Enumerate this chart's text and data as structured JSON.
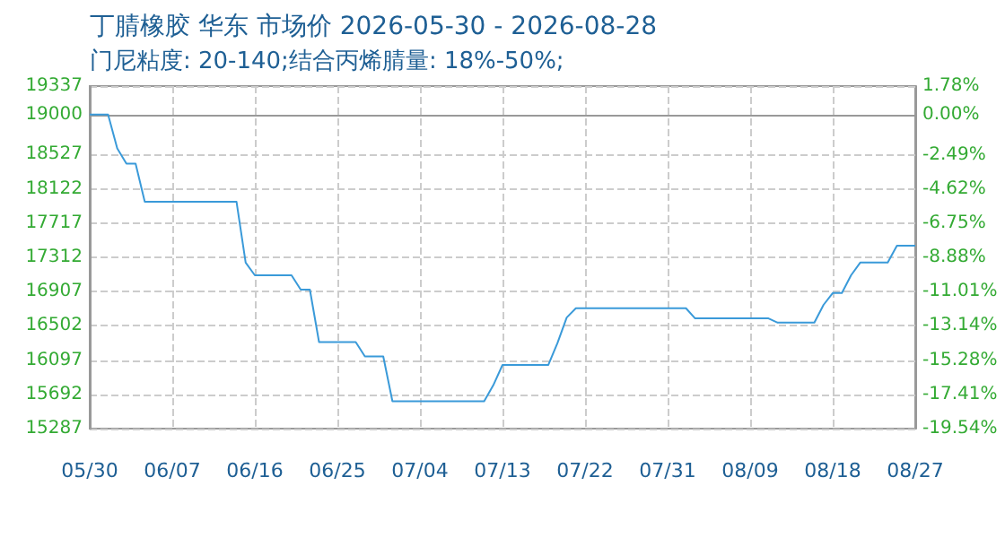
{
  "chart_data": {
    "type": "line",
    "title": "丁腈橡胶 华东 市场价 2026-05-30 - 2026-08-28",
    "subtitle": "门尼粘度: 20-140;结合丙烯腈量: 18%-50%;",
    "x": [
      "2026-05-30",
      "2026-06-01",
      "2026-06-02",
      "2026-06-03",
      "2026-06-04",
      "2026-06-05",
      "2026-06-15",
      "2026-06-16",
      "2026-06-17",
      "2026-06-21",
      "2026-06-22",
      "2026-06-23",
      "2026-06-24",
      "2026-06-28",
      "2026-06-29",
      "2026-07-01",
      "2026-07-02",
      "2026-07-12",
      "2026-07-13",
      "2026-07-14",
      "2026-07-19",
      "2026-07-20",
      "2026-07-21",
      "2026-07-22",
      "2026-08-03",
      "2026-08-04",
      "2026-08-12",
      "2026-08-13",
      "2026-08-17",
      "2026-08-18",
      "2026-08-19",
      "2026-08-20",
      "2026-08-21",
      "2026-08-22",
      "2026-08-25",
      "2026-08-26",
      "2026-08-28"
    ],
    "series": [
      {
        "color": "#3a9ad9",
        "values": [
          19000,
          19000,
          18600,
          18420,
          18420,
          17970,
          17970,
          17250,
          17100,
          17100,
          16930,
          16930,
          16310,
          16310,
          16140,
          16140,
          15610,
          15610,
          15800,
          16040,
          16040,
          16300,
          16600,
          16710,
          16710,
          16590,
          16590,
          16540,
          16540,
          16750,
          16890,
          16890,
          17100,
          17250,
          17250,
          17450,
          17450
        ]
      }
    ],
    "xlim": [
      "2026-05-30",
      "2026-08-28"
    ],
    "xticks": [
      {
        "value": "2026-05-30",
        "label": "05/30"
      },
      {
        "value": "2026-06-08",
        "label": "06/07"
      },
      {
        "value": "2026-06-17",
        "label": "06/16"
      },
      {
        "value": "2026-06-26",
        "label": "06/25"
      },
      {
        "value": "2026-07-05",
        "label": "07/04"
      },
      {
        "value": "2026-07-14",
        "label": "07/13"
      },
      {
        "value": "2026-07-23",
        "label": "07/22"
      },
      {
        "value": "2026-08-01",
        "label": "07/31"
      },
      {
        "value": "2026-08-10",
        "label": "08/09"
      },
      {
        "value": "2026-08-19",
        "label": "08/18"
      },
      {
        "value": "2026-08-28",
        "label": "08/27"
      }
    ],
    "ylim": [
      15287,
      19337
    ],
    "yticks": [
      15287,
      15692,
      16097,
      16502,
      16907,
      17312,
      17717,
      18122,
      18527,
      19000,
      19337
    ],
    "y2lim": [
      -19.54,
      1.78
    ],
    "y2ticks": [
      {
        "value": -19.54,
        "label": "-19.54%"
      },
      {
        "value": -17.41,
        "label": "-17.41%"
      },
      {
        "value": -15.28,
        "label": "-15.28%"
      },
      {
        "value": -13.14,
        "label": "-13.14%"
      },
      {
        "value": -11.01,
        "label": "-11.01%"
      },
      {
        "value": -8.88,
        "label": "-8.88%"
      },
      {
        "value": -6.75,
        "label": "-6.75%"
      },
      {
        "value": -4.62,
        "label": "-4.62%"
      },
      {
        "value": -2.49,
        "label": "-2.49%"
      },
      {
        "value": 0,
        "label": "0.00%"
      },
      {
        "value": 1.78,
        "label": "1.78%"
      }
    ],
    "grid": true,
    "marker": "none",
    "line_style": "solid"
  }
}
